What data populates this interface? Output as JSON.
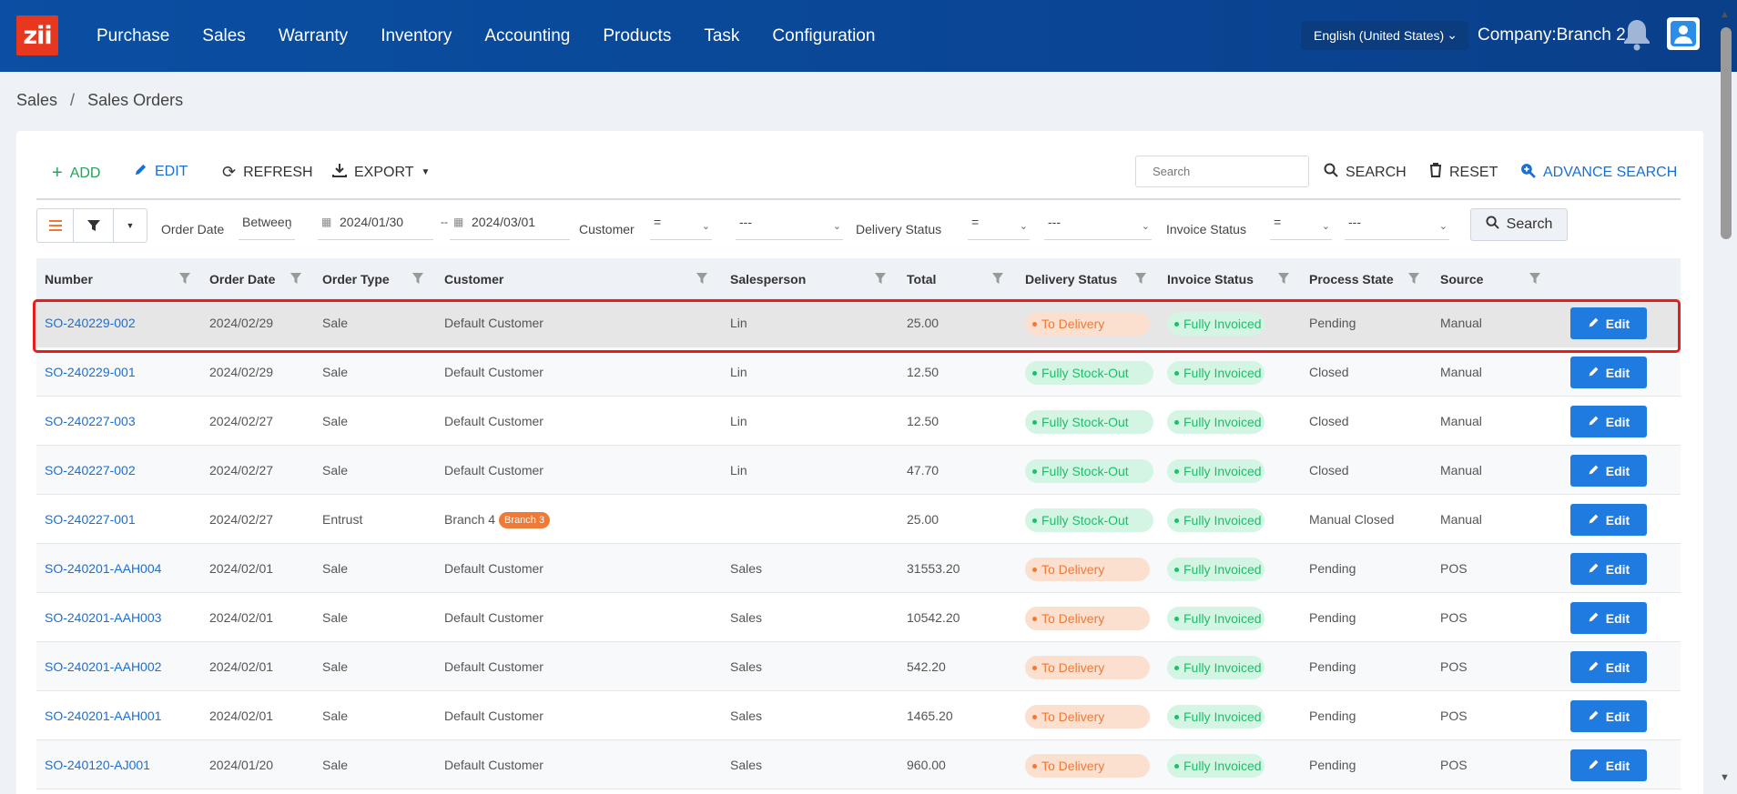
{
  "brand": {
    "logo_text": "zii"
  },
  "nav": [
    "Purchase",
    "Sales",
    "Warranty",
    "Inventory",
    "Accounting",
    "Products",
    "Task",
    "Configuration"
  ],
  "header": {
    "language": "English (United States)",
    "company": "Company:Branch 2"
  },
  "breadcrumb": {
    "section": "Sales",
    "separator": "/",
    "page": "Sales Orders"
  },
  "toolbar": {
    "add": "ADD",
    "edit": "EDIT",
    "refresh": "REFRESH",
    "export": "EXPORT",
    "search_placeholder": "Search",
    "search": "SEARCH",
    "reset": "RESET",
    "advance_search": "ADVANCE SEARCH"
  },
  "filters": {
    "order_date_label": "Order Date",
    "order_date_op": "Between",
    "date_from": "2024/01/30",
    "date_sep": "--",
    "date_to": "2024/03/01",
    "customer_label": "Customer",
    "customer_op": "=",
    "customer_value": "---",
    "delivery_label": "Delivery Status",
    "delivery_op": "=",
    "delivery_value": "---",
    "invoice_label": "Invoice Status",
    "invoice_op": "=",
    "invoice_value": "---",
    "search_button": "Search"
  },
  "columns": [
    "Number",
    "Order Date",
    "Order Type",
    "Customer",
    "Salesperson",
    "Total",
    "Delivery Status",
    "Invoice Status",
    "Process State",
    "Source"
  ],
  "edit_label": "Edit",
  "rows": [
    {
      "number": "SO-240229-002",
      "date": "2024/02/29",
      "type": "Sale",
      "customer": "Default Customer",
      "badge": "",
      "salesperson": "Lin",
      "total": "25.00",
      "delivery": "To Delivery",
      "invoice": "Fully Invoiced",
      "state": "Pending",
      "source": "Manual"
    },
    {
      "number": "SO-240229-001",
      "date": "2024/02/29",
      "type": "Sale",
      "customer": "Default Customer",
      "badge": "",
      "salesperson": "Lin",
      "total": "12.50",
      "delivery": "Fully Stock-Out",
      "invoice": "Fully Invoiced",
      "state": "Closed",
      "source": "Manual"
    },
    {
      "number": "SO-240227-003",
      "date": "2024/02/27",
      "type": "Sale",
      "customer": "Default Customer",
      "badge": "",
      "salesperson": "Lin",
      "total": "12.50",
      "delivery": "Fully Stock-Out",
      "invoice": "Fully Invoiced",
      "state": "Closed",
      "source": "Manual"
    },
    {
      "number": "SO-240227-002",
      "date": "2024/02/27",
      "type": "Sale",
      "customer": "Default Customer",
      "badge": "",
      "salesperson": "Lin",
      "total": "47.70",
      "delivery": "Fully Stock-Out",
      "invoice": "Fully Invoiced",
      "state": "Closed",
      "source": "Manual"
    },
    {
      "number": "SO-240227-001",
      "date": "2024/02/27",
      "type": "Entrust",
      "customer": "Branch 4",
      "badge": "Branch 3",
      "salesperson": "",
      "total": "25.00",
      "delivery": "Fully Stock-Out",
      "invoice": "Fully Invoiced",
      "state": "Manual Closed",
      "source": "Manual"
    },
    {
      "number": "SO-240201-AAH004",
      "date": "2024/02/01",
      "type": "Sale",
      "customer": "Default Customer",
      "badge": "",
      "salesperson": "Sales",
      "total": "31553.20",
      "delivery": "To Delivery",
      "invoice": "Fully Invoiced",
      "state": "Pending",
      "source": "POS"
    },
    {
      "number": "SO-240201-AAH003",
      "date": "2024/02/01",
      "type": "Sale",
      "customer": "Default Customer",
      "badge": "",
      "salesperson": "Sales",
      "total": "10542.20",
      "delivery": "To Delivery",
      "invoice": "Fully Invoiced",
      "state": "Pending",
      "source": "POS"
    },
    {
      "number": "SO-240201-AAH002",
      "date": "2024/02/01",
      "type": "Sale",
      "customer": "Default Customer",
      "badge": "",
      "salesperson": "Sales",
      "total": "542.20",
      "delivery": "To Delivery",
      "invoice": "Fully Invoiced",
      "state": "Pending",
      "source": "POS"
    },
    {
      "number": "SO-240201-AAH001",
      "date": "2024/02/01",
      "type": "Sale",
      "customer": "Default Customer",
      "badge": "",
      "salesperson": "Sales",
      "total": "1465.20",
      "delivery": "To Delivery",
      "invoice": "Fully Invoiced",
      "state": "Pending",
      "source": "POS"
    },
    {
      "number": "SO-240120-AJ001",
      "date": "2024/01/20",
      "type": "Sale",
      "customer": "Default Customer",
      "badge": "",
      "salesperson": "Sales",
      "total": "960.00",
      "delivery": "To Delivery",
      "invoice": "Fully Invoiced",
      "state": "Pending",
      "source": "POS"
    }
  ],
  "colors": {
    "header": "#0a4fa3",
    "accent": "#1f7be0",
    "to_delivery": "#ef7a38",
    "stock_out": "#1cbe6a",
    "highlight": "#e81e1e"
  }
}
